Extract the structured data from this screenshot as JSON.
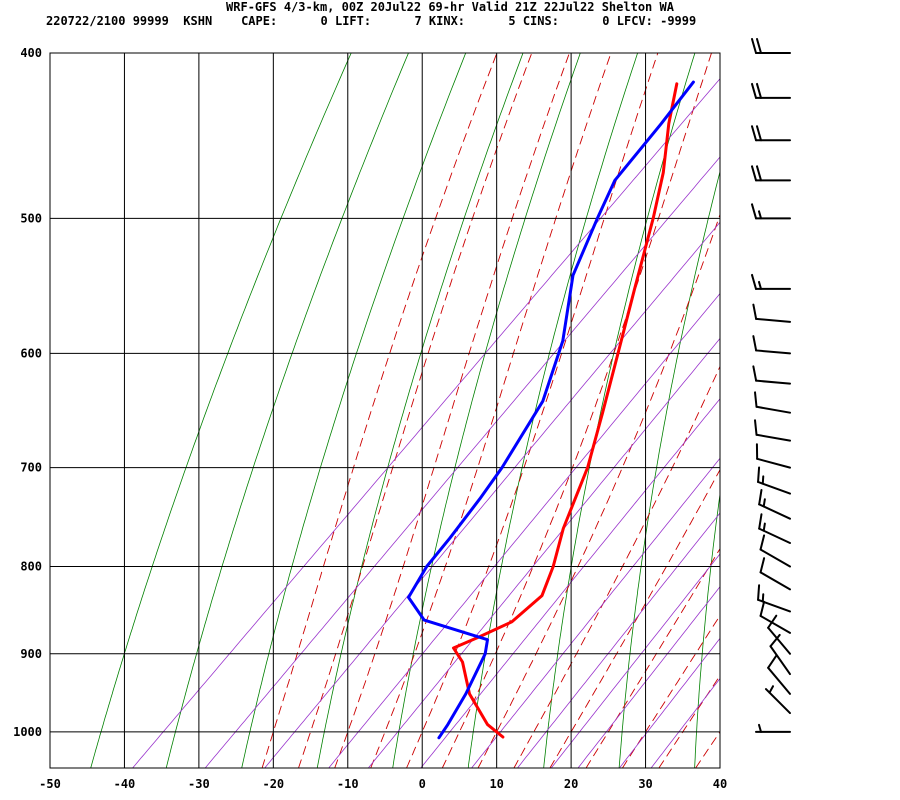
{
  "header": {
    "line1": "WRF-GFS 4/3-km, 00Z 20Jul22 69-hr Valid 21Z 22Jul22 Shelton WA",
    "line2": "220722/2100 99999  KSHN    CAPE:      0 LIFT:      7 KINX:      5 CINS:      0 LFCV: -9999"
  },
  "chart_data": {
    "type": "line",
    "title": "WRF-GFS 4/3-km, 00Z 20Jul22 69-hr Valid 21Z 22Jul22 Shelton WA",
    "xlabel": "",
    "ylabel": "",
    "x_ticks": [
      "-50",
      "-40",
      "-30",
      "-20",
      "-10",
      "0",
      "10",
      "20",
      "30",
      "40"
    ],
    "y_ticks": [
      "400",
      "500",
      "600",
      "700",
      "800",
      "900",
      "1000"
    ],
    "x_ticks_values": [
      -50,
      -40,
      -30,
      -20,
      -10,
      0,
      10,
      20,
      30,
      40
    ],
    "y_ticks_values": [
      400,
      500,
      600,
      700,
      800,
      900,
      1000
    ],
    "xlim": [
      -50,
      40
    ],
    "ylim": [
      1050,
      400
    ],
    "y_scale": "log",
    "grid": true,
    "series": [
      {
        "color": "#ff0000",
        "points": [
          {
            "p": 1007,
            "t": 11.5
          },
          {
            "p": 990,
            "t": 7.8
          },
          {
            "p": 950,
            "t": 1.5
          },
          {
            "p": 910,
            "t": -3.5
          },
          {
            "p": 893,
            "t": -6.5
          },
          {
            "p": 880,
            "t": -4.5
          },
          {
            "p": 862,
            "t": -2.0
          },
          {
            "p": 832,
            "t": -1.3
          },
          {
            "p": 800,
            "t": -3.5
          },
          {
            "p": 760,
            "t": -7.0
          },
          {
            "p": 700,
            "t": -11.5
          },
          {
            "p": 650,
            "t": -16.5
          },
          {
            "p": 600,
            "t": -22.0
          },
          {
            "p": 550,
            "t": -28.0
          },
          {
            "p": 500,
            "t": -34.5
          },
          {
            "p": 470,
            "t": -39.0
          },
          {
            "p": 440,
            "t": -44.5
          },
          {
            "p": 417,
            "t": -48.5
          }
        ]
      },
      {
        "color": "#0000ff",
        "points": [
          {
            "p": 1008,
            "t": 3.0
          },
          {
            "p": 990,
            "t": 2.5
          },
          {
            "p": 950,
            "t": 1.0
          },
          {
            "p": 900,
            "t": -1.5
          },
          {
            "p": 883,
            "t": -3.0
          },
          {
            "p": 860,
            "t": -14.0
          },
          {
            "p": 834,
            "t": -19.0
          },
          {
            "p": 800,
            "t": -20.5
          },
          {
            "p": 770,
            "t": -21.0
          },
          {
            "p": 730,
            "t": -22.0
          },
          {
            "p": 700,
            "t": -23.0
          },
          {
            "p": 640,
            "t": -26.0
          },
          {
            "p": 590,
            "t": -31.0
          },
          {
            "p": 540,
            "t": -38.0
          },
          {
            "p": 500,
            "t": -42.0
          },
          {
            "p": 475,
            "t": -44.5
          },
          {
            "p": 440,
            "t": -45.5
          },
          {
            "p": 416,
            "t": -46.5
          }
        ]
      }
    ],
    "wind_barbs": [
      {
        "p": 1000,
        "dir": 270,
        "spd": 5
      },
      {
        "p": 975,
        "dir": 315,
        "spd": 5
      },
      {
        "p": 950,
        "dir": 320,
        "spd": 10
      },
      {
        "p": 925,
        "dir": 325,
        "spd": 10
      },
      {
        "p": 900,
        "dir": 320,
        "spd": 10
      },
      {
        "p": 875,
        "dir": 300,
        "spd": 10
      },
      {
        "p": 850,
        "dir": 290,
        "spd": 15
      },
      {
        "p": 825,
        "dir": 300,
        "spd": 10
      },
      {
        "p": 800,
        "dir": 300,
        "spd": 10
      },
      {
        "p": 775,
        "dir": 295,
        "spd": 15
      },
      {
        "p": 750,
        "dir": 295,
        "spd": 15
      },
      {
        "p": 725,
        "dir": 290,
        "spd": 15
      },
      {
        "p": 700,
        "dir": 285,
        "spd": 10
      },
      {
        "p": 675,
        "dir": 280,
        "spd": 10
      },
      {
        "p": 650,
        "dir": 280,
        "spd": 10
      },
      {
        "p": 625,
        "dir": 275,
        "spd": 10
      },
      {
        "p": 600,
        "dir": 275,
        "spd": 10
      },
      {
        "p": 575,
        "dir": 275,
        "spd": 10
      },
      {
        "p": 550,
        "dir": 270,
        "spd": 15
      },
      {
        "p": 500,
        "dir": 270,
        "spd": 15
      },
      {
        "p": 475,
        "dir": 270,
        "spd": 20
      },
      {
        "p": 450,
        "dir": 270,
        "spd": 20
      },
      {
        "p": 425,
        "dir": 270,
        "spd": 20
      },
      {
        "p": 400,
        "dir": 270,
        "spd": 20
      }
    ],
    "background_colors": {
      "grid": "#000000",
      "dry_adiabat": "#008000",
      "moist_adiabat": "#cc0000",
      "mixing_ratio": "#9933cc"
    }
  }
}
